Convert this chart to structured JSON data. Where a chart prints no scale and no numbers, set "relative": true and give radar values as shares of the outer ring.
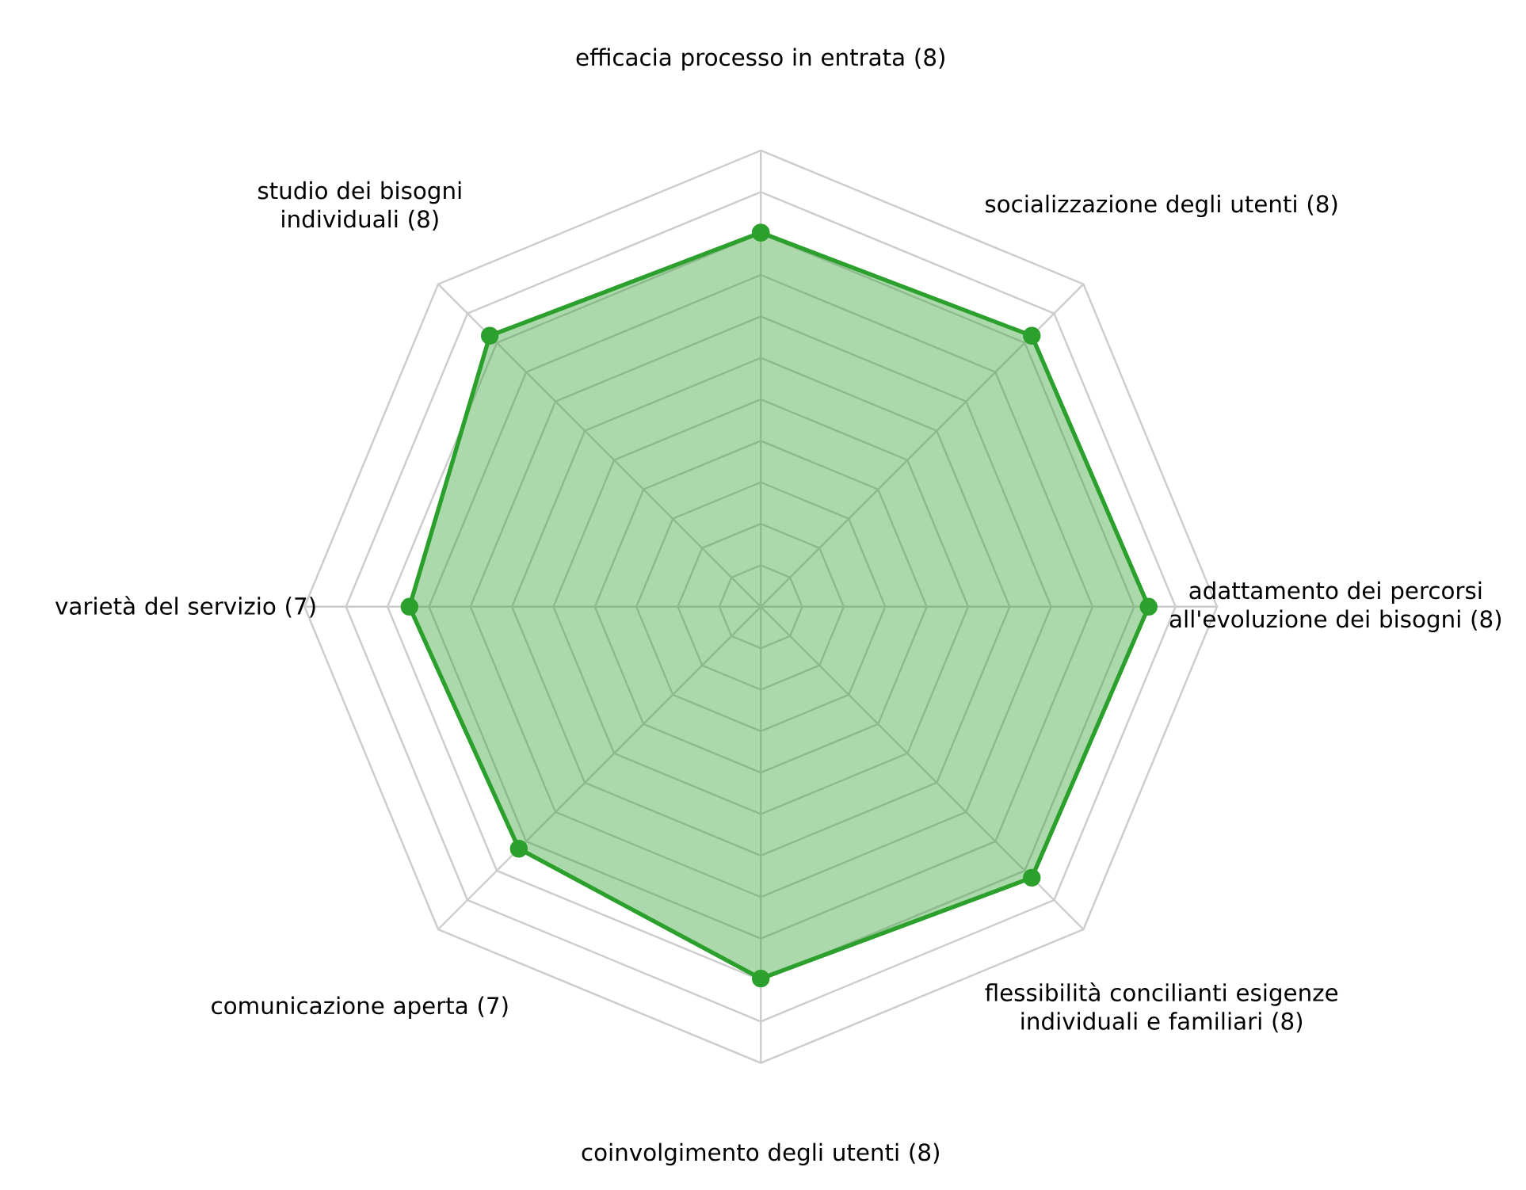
{
  "chart_data": {
    "type": "radar",
    "relative": true,
    "grid": true,
    "marker": "circle",
    "categories": [
      "efficacia processo in entrata (8)",
      "socializzazione degli utenti (8)",
      "adattamento dei percorsi all'evoluzione dei bisogni (8)",
      "flessibilità concilianti esigenze individuali e familiari (8)",
      "coinvolgimento degli utenti (8)",
      "comunicazione aperta (7)",
      "varietà del servizio (7)",
      "studio dei bisogni individuali (8)"
    ],
    "series": [
      {
        "color": "#2ca02c",
        "values": [
          0.82,
          0.84,
          0.85,
          0.84,
          0.815,
          0.75,
          0.77,
          0.84
        ]
      }
    ]
  }
}
